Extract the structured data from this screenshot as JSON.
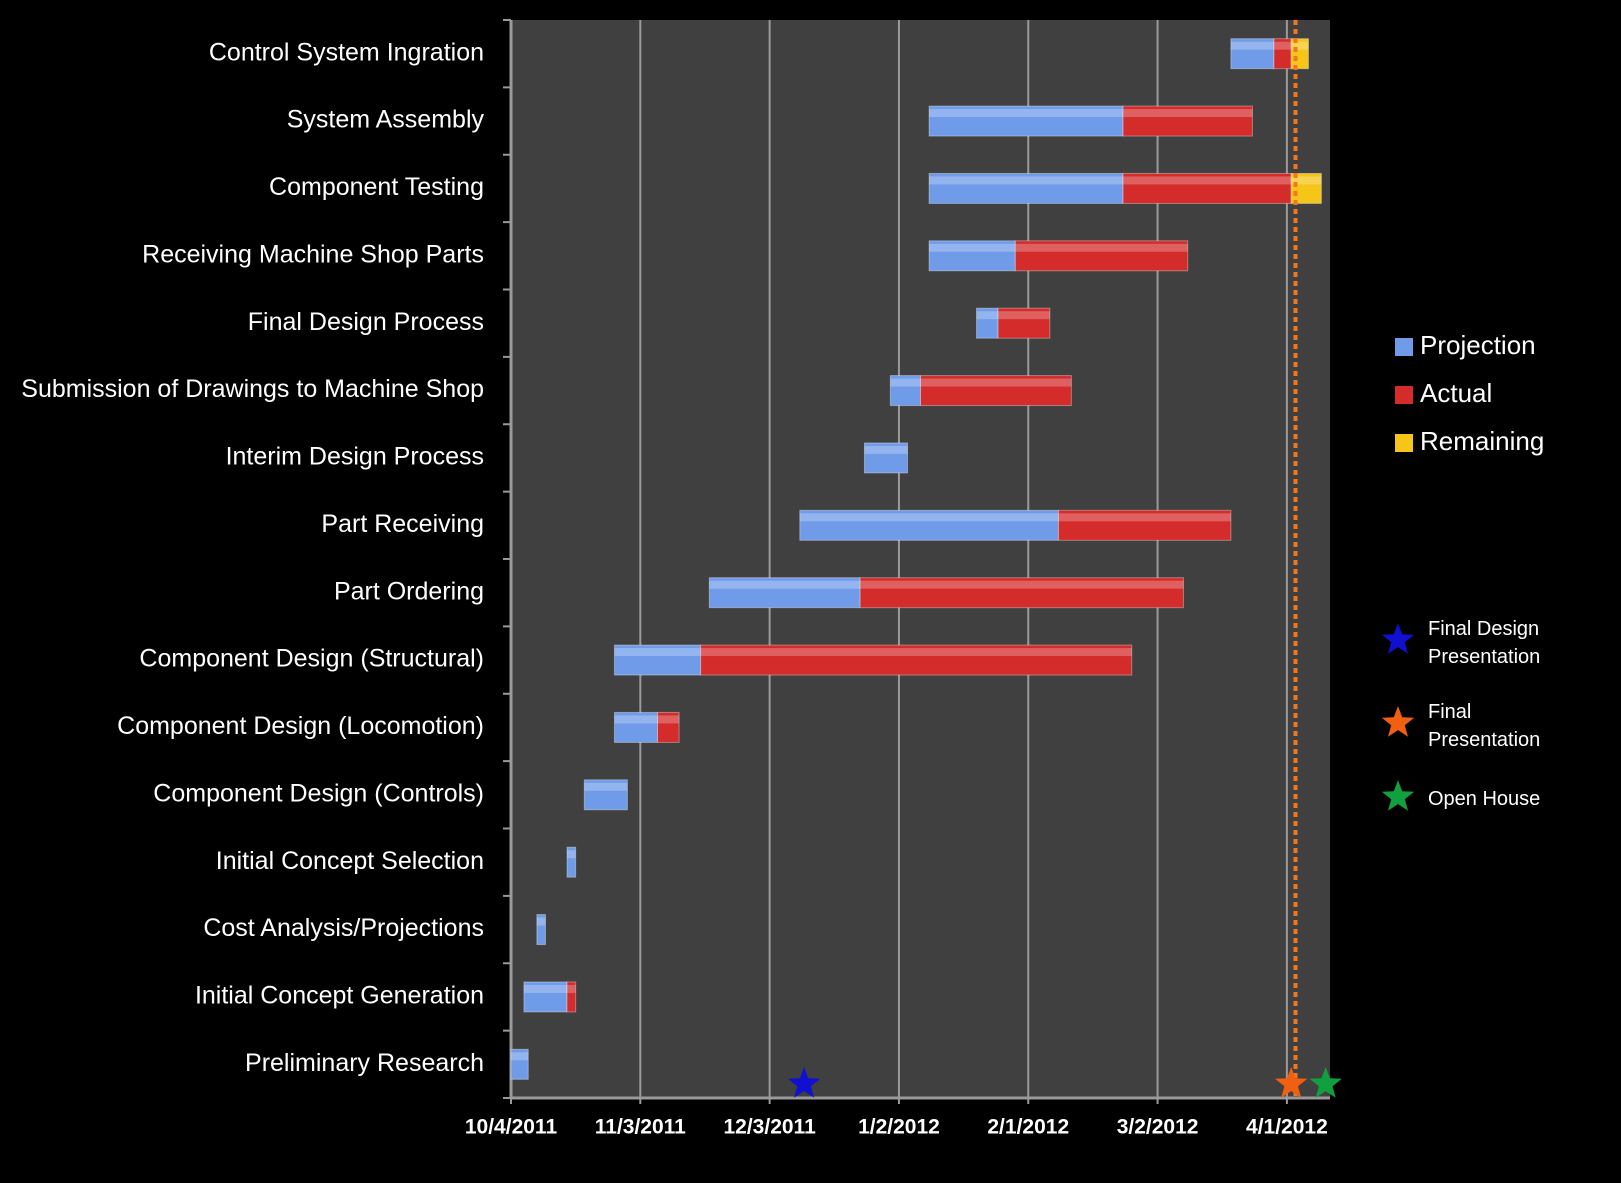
{
  "chart_data": {
    "type": "gantt",
    "categories": [
      "Preliminary Research",
      "Initial Concept Generation",
      "Cost Analysis/Projections",
      "Initial Concept Selection",
      "Component Design (Controls)",
      "Component Design (Locomotion)",
      "Component Design (Structural)",
      "Part Ordering",
      "Part Receiving",
      "Interim Design Process",
      "Submission of Drawings to Machine Shop",
      "Final Design Process",
      "Receiving Machine Shop Parts",
      "Component Testing",
      "System Assembly",
      "Control System Ingration"
    ],
    "starts": [
      40820,
      40823,
      40826,
      40833,
      40837,
      40844,
      40844,
      40866,
      40887,
      40902,
      40908,
      40928,
      40917,
      40917,
      40917,
      40987
    ],
    "series": [
      {
        "name": "Projection",
        "color": "#6f9be8",
        "values": [
          4,
          10,
          2,
          2,
          10,
          10,
          20,
          35,
          60,
          10,
          7,
          5,
          20,
          45,
          45,
          10
        ]
      },
      {
        "name": "Actual",
        "color": "#d42b2b",
        "values": [
          null,
          2,
          null,
          null,
          null,
          5,
          100,
          75,
          40,
          null,
          35,
          12,
          40,
          39,
          30,
          4
        ]
      },
      {
        "name": "Remaining",
        "color": "#f5c518",
        "values": [
          null,
          null,
          null,
          null,
          null,
          null,
          null,
          null,
          null,
          null,
          null,
          null,
          null,
          7,
          null,
          4
        ]
      }
    ],
    "xlim": [
      40820,
      41010
    ],
    "xticks": [
      {
        "value": 40820,
        "label": "10/4/2011"
      },
      {
        "value": 40850,
        "label": "11/3/2011"
      },
      {
        "value": 40880,
        "label": "12/3/2011"
      },
      {
        "value": 40910,
        "label": "1/2/2012"
      },
      {
        "value": 40940,
        "label": "2/1/2012"
      },
      {
        "value": 40970,
        "label": "3/2/2012"
      },
      {
        "value": 41000,
        "label": "4/1/2012"
      }
    ],
    "grid": true,
    "date_line": {
      "value": 41002,
      "color": "#f07820"
    },
    "milestones": [
      {
        "name": "Final Design Presentation",
        "color": "#1010d0",
        "x": 40888
      },
      {
        "name": "Final Presentation",
        "color": "#f06010",
        "x": 41001
      },
      {
        "name": "Open House",
        "color": "#10a040",
        "x": 41009
      }
    ]
  }
}
